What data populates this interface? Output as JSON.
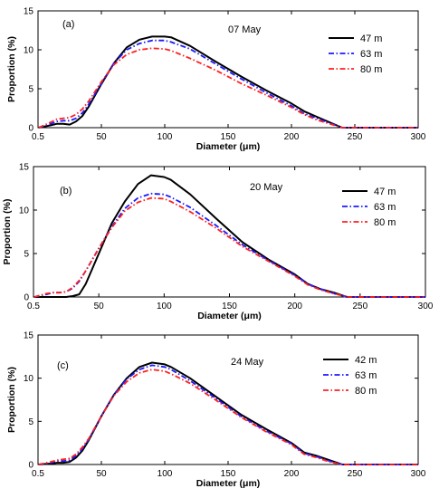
{
  "chart_data": [
    {
      "type": "line",
      "panel_label": "(a)",
      "date": "07 May",
      "xlabel": "Diameter (μm)",
      "ylabel": "Proportion (%)",
      "xlim": [
        0.5,
        300
      ],
      "ylim": [
        0,
        15
      ],
      "xticks": [
        "0.5",
        "50",
        "100",
        "150",
        "200",
        "250",
        "300"
      ],
      "yticks": [
        "0",
        "5",
        "10",
        "15"
      ],
      "x": [
        0.5,
        10,
        15,
        20,
        25,
        30,
        35,
        40,
        50,
        60,
        70,
        80,
        90,
        100,
        105,
        120,
        140,
        160,
        180,
        200,
        210,
        220,
        230,
        240,
        260,
        280,
        300
      ],
      "series": [
        {
          "name": "47 m",
          "color": "#000000",
          "dash": "solid",
          "values": [
            0,
            0.3,
            0.5,
            0.5,
            0.4,
            0.8,
            1.5,
            2.7,
            5.6,
            8.3,
            10.3,
            11.3,
            11.7,
            11.7,
            11.6,
            10.5,
            8.5,
            6.6,
            4.8,
            3.1,
            2.1,
            1.4,
            0.7,
            0,
            0,
            0,
            0
          ]
        },
        {
          "name": "63 m",
          "color": "#1a1aff",
          "dash": "dashdot",
          "values": [
            0,
            0.5,
            0.8,
            0.9,
            0.9,
            1.2,
            1.9,
            3.0,
            5.7,
            8.3,
            10.0,
            10.8,
            11.2,
            11.2,
            11.0,
            10.1,
            8.2,
            6.3,
            4.5,
            2.8,
            1.8,
            1.2,
            0.6,
            0,
            0,
            0,
            0
          ]
        },
        {
          "name": "80 m",
          "color": "#ff2020",
          "dash": "dashdot",
          "values": [
            0,
            0.7,
            1.1,
            1.2,
            1.3,
            1.7,
            2.4,
            3.4,
            5.9,
            8.1,
            9.4,
            10.0,
            10.2,
            10.1,
            9.9,
            8.9,
            7.4,
            5.7,
            4.2,
            2.6,
            1.7,
            1.0,
            0.5,
            0,
            0,
            0,
            0
          ]
        }
      ]
    },
    {
      "type": "line",
      "panel_label": "(b)",
      "date": "20 May",
      "xlabel": "Diameter (μm)",
      "ylabel": "Proportion (%)",
      "xlim": [
        0.5,
        300
      ],
      "ylim": [
        0,
        15
      ],
      "xticks": [
        "0.5",
        "50",
        "100",
        "150",
        "200",
        "250",
        "300"
      ],
      "yticks": [
        "0",
        "5",
        "10",
        "15"
      ],
      "x": [
        0.5,
        10,
        15,
        20,
        25,
        30,
        35,
        40,
        50,
        60,
        70,
        80,
        90,
        100,
        105,
        120,
        140,
        160,
        180,
        200,
        210,
        220,
        230,
        240,
        260,
        280,
        300
      ],
      "series": [
        {
          "name": "47 m",
          "color": "#000000",
          "dash": "solid",
          "values": [
            0,
            0,
            0,
            0,
            0,
            0.1,
            0.3,
            1.5,
            5.0,
            8.5,
            11.0,
            13.0,
            14.0,
            13.8,
            13.5,
            11.8,
            9.0,
            6.3,
            4.3,
            2.6,
            1.5,
            0.9,
            0.5,
            0,
            0,
            0,
            0
          ]
        },
        {
          "name": "63 m",
          "color": "#1a1aff",
          "dash": "dashdot",
          "values": [
            0,
            0.3,
            0.5,
            0.5,
            0.6,
            1.0,
            1.8,
            3.0,
            5.6,
            8.1,
            10.2,
            11.4,
            11.9,
            11.8,
            11.5,
            10.3,
            8.2,
            6.0,
            4.2,
            2.5,
            1.5,
            0.9,
            0.4,
            0,
            0,
            0,
            0
          ]
        },
        {
          "name": "80 m",
          "color": "#ff2020",
          "dash": "dashdot",
          "values": [
            0,
            0.4,
            0.5,
            0.5,
            0.6,
            1.1,
            1.9,
            3.0,
            5.6,
            8.0,
            9.9,
            10.9,
            11.4,
            11.3,
            11.0,
            9.8,
            7.9,
            5.8,
            4.1,
            2.4,
            1.4,
            0.8,
            0.4,
            0,
            0,
            0,
            0
          ]
        }
      ]
    },
    {
      "type": "line",
      "panel_label": "(c)",
      "date": "24 May",
      "xlabel": "Diameter (μm)",
      "ylabel": "Proportion (%)",
      "xlim": [
        0.5,
        300
      ],
      "ylim": [
        0,
        15
      ],
      "xticks": [
        "0.5",
        "50",
        "100",
        "150",
        "200",
        "250",
        "300"
      ],
      "yticks": [
        "0",
        "5",
        "10",
        "15"
      ],
      "x": [
        0.5,
        10,
        15,
        20,
        25,
        30,
        35,
        40,
        50,
        60,
        70,
        80,
        90,
        100,
        105,
        120,
        140,
        160,
        180,
        200,
        210,
        220,
        230,
        240,
        260,
        280,
        300
      ],
      "series": [
        {
          "name": "42 m",
          "color": "#000000",
          "dash": "solid",
          "values": [
            0,
            0.1,
            0.2,
            0.2,
            0.3,
            0.8,
            1.6,
            2.8,
            5.6,
            8.1,
            10.0,
            11.3,
            11.8,
            11.6,
            11.3,
            10.0,
            7.9,
            5.8,
            4.1,
            2.5,
            1.4,
            1.0,
            0.5,
            0,
            0,
            0,
            0
          ]
        },
        {
          "name": "63 m",
          "color": "#1a1aff",
          "dash": "dashdot",
          "values": [
            0,
            0.2,
            0.4,
            0.4,
            0.5,
            1.0,
            1.8,
            2.9,
            5.6,
            8.1,
            9.9,
            11.0,
            11.5,
            11.3,
            11.0,
            9.7,
            7.7,
            5.6,
            3.9,
            2.4,
            1.3,
            0.9,
            0.4,
            0,
            0,
            0,
            0
          ]
        },
        {
          "name": "80 m",
          "color": "#ff2020",
          "dash": "dashdot",
          "values": [
            0,
            0.3,
            0.5,
            0.6,
            0.7,
            1.2,
            2.0,
            3.0,
            5.6,
            8.0,
            9.6,
            10.6,
            11.0,
            10.8,
            10.5,
            9.4,
            7.5,
            5.5,
            3.8,
            2.3,
            1.2,
            0.8,
            0.3,
            0,
            0,
            0,
            0
          ]
        }
      ]
    }
  ]
}
